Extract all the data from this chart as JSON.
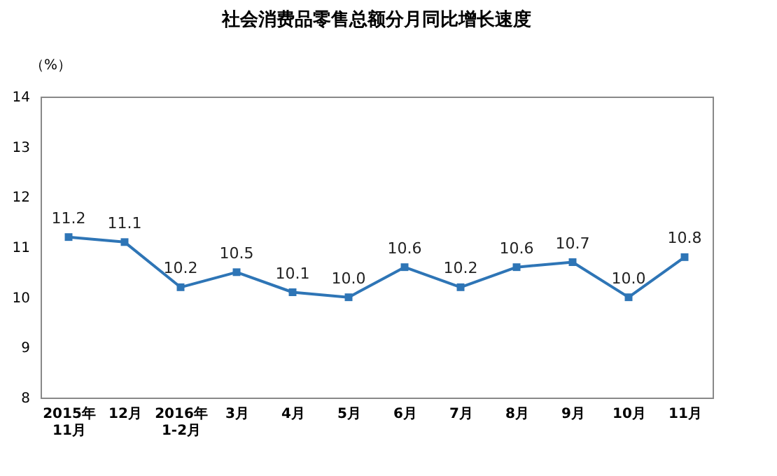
{
  "chart_data": {
    "type": "line",
    "title": "社会消费品零售总额分月同比增长速度",
    "ylabel": "（%）",
    "categories": [
      "2015年\n11月",
      "12月",
      "2016年\n1-2月",
      "3月",
      "4月",
      "5月",
      "6月",
      "7月",
      "8月",
      "9月",
      "10月",
      "11月"
    ],
    "series": [
      {
        "color": "#2e75b6",
        "values": [
          11.2,
          11.1,
          10.2,
          10.5,
          10.1,
          10.0,
          10.6,
          10.2,
          10.6,
          10.7,
          10.0,
          10.8
        ],
        "value_labels": [
          "11.2",
          "11.1",
          "10.2",
          "10.5",
          "10.1",
          "10.0",
          "10.6",
          "10.2",
          "10.6",
          "10.7",
          "10.0",
          "10.8"
        ]
      }
    ],
    "ylim": [
      8,
      14
    ],
    "yticks": [
      8,
      9,
      10,
      11,
      12,
      13,
      14
    ],
    "grid": false,
    "legend": false,
    "marker": "square",
    "line_style": "solid"
  }
}
